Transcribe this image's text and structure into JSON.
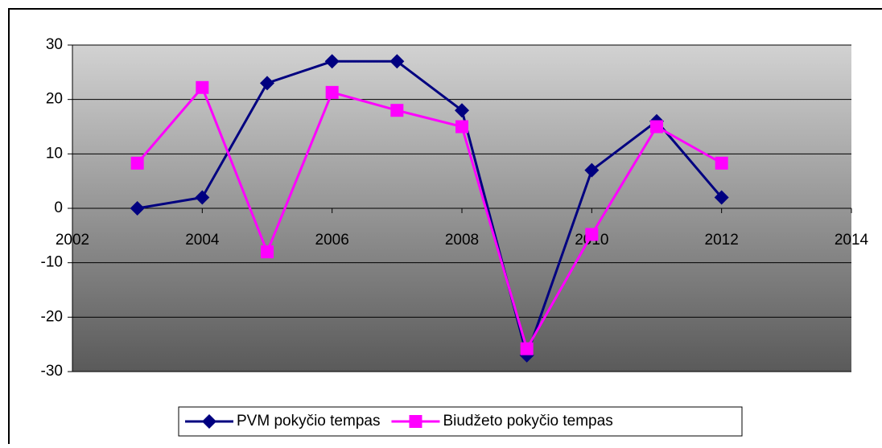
{
  "chart_data": {
    "type": "line",
    "x": [
      2003,
      2004,
      2005,
      2006,
      2007,
      2008,
      2009,
      2010,
      2011,
      2012
    ],
    "series": [
      {
        "name": "PVM pokyčio tempas",
        "color": "#000080",
        "marker": "diamond",
        "values": [
          0,
          2,
          23,
          27,
          27,
          18,
          -27,
          7,
          16,
          2
        ]
      },
      {
        "name": "Biudžeto pokyčio tempas",
        "color": "#ff00ff",
        "marker": "square",
        "values": [
          8.3,
          22.2,
          -8,
          21.3,
          18,
          15,
          -25.8,
          -4.8,
          15,
          8.3
        ]
      }
    ],
    "xlim": [
      2002,
      2014
    ],
    "xticks": [
      2002,
      2004,
      2006,
      2008,
      2010,
      2012,
      2014
    ],
    "ylim": [
      -30,
      30
    ],
    "yticks": [
      -30,
      -20,
      -10,
      0,
      10,
      20,
      30
    ],
    "grid": true,
    "legend": "bottom"
  }
}
